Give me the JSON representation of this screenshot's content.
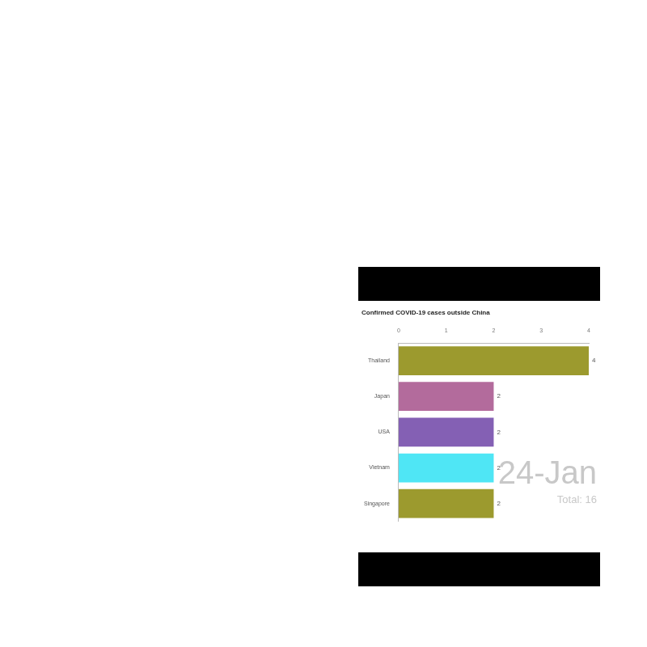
{
  "chart_data": {
    "type": "bar",
    "orientation": "horizontal",
    "title": "Confirmed COVID-19 cases outside China",
    "categories": [
      "Thailand",
      "Japan",
      "USA",
      "Vietnam",
      "Singapore"
    ],
    "values": [
      4,
      2,
      2,
      2,
      2
    ],
    "colors": [
      "#9c9a2e",
      "#b36b9c",
      "#8460b4",
      "#4fe6f5",
      "#9c9a2e"
    ],
    "xlim": [
      0,
      4
    ],
    "xticks": [
      0,
      1,
      2,
      3,
      4
    ],
    "grid": false,
    "data_labels": true,
    "annotations": [
      "24-Jan",
      "Total: 16"
    ]
  }
}
